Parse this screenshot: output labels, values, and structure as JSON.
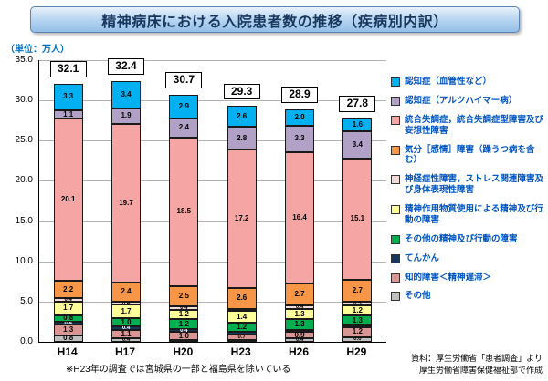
{
  "title": "精神病床における入院患者数の推移（疾病別内訳）",
  "unit_label": "（単位：万人）",
  "footnote": "※H23年の調査では宮城県の一部と福島県を除いている",
  "source_line1": "資料：厚生労働省「患者調査」より",
  "source_line2": "厚生労働省障害保健福祉部で作成",
  "chart_data": {
    "type": "bar",
    "stacked": true,
    "title": "精神病床における入院患者数の推移（疾病別内訳）",
    "unit": "万人",
    "categories": [
      "H14",
      "H17",
      "H20",
      "H23",
      "H26",
      "H29"
    ],
    "totals": [
      32.1,
      32.4,
      30.7,
      29.3,
      28.9,
      27.8
    ],
    "ylim": [
      0,
      35
    ],
    "ytick_step": 5,
    "grid": true,
    "legend_position": "right",
    "series": [
      {
        "name": "認知症（血管性など）",
        "color": "#00B0F0",
        "values": [
          3.3,
          3.4,
          2.9,
          2.6,
          2.0,
          1.6
        ]
      },
      {
        "name": "認知症（アルツハイマー病）",
        "color": "#B2A1C7",
        "values": [
          1.1,
          1.9,
          2.4,
          2.8,
          3.3,
          3.4
        ]
      },
      {
        "name": "統合失調症，統合失調症型障害及び妄想性障害",
        "color": "#F6A5A5",
        "values": [
          20.1,
          19.7,
          18.5,
          17.2,
          16.4,
          15.1
        ]
      },
      {
        "name": "気分［感情］障害（躁うつ病を含む）",
        "color": "#F79646",
        "values": [
          2.2,
          2.4,
          2.5,
          2.6,
          2.7,
          2.7
        ]
      },
      {
        "name": "神経症性障害，ストレス関連障害及び身体表現性障害",
        "color": "#F2DCDB",
        "values": [
          0.4,
          0.4,
          0.4,
          0.3,
          0.4,
          0.5
        ]
      },
      {
        "name": "精神作用物質使用による精神及び行動の障害",
        "color": "#FFFF99",
        "values": [
          1.7,
          1.7,
          1.2,
          1.4,
          1.3,
          1.2
        ]
      },
      {
        "name": "その他の精神及び行動の障害",
        "color": "#00B050",
        "values": [
          0.8,
          1.0,
          1.2,
          1.2,
          1.3,
          1.3
        ]
      },
      {
        "name": "てんかん",
        "color": "#17375E",
        "values": [
          0.4,
          0.4,
          0.4,
          0.3,
          0.2,
          0.2
        ]
      },
      {
        "name": "知的障害＜精神遅滞＞",
        "color": "#D99694",
        "values": [
          1.3,
          1.1,
          1.0,
          0.7,
          0.9,
          1.2
        ]
      },
      {
        "name": "その他",
        "color": "#C0C0C0",
        "values": [
          0.8,
          0.4,
          0.2,
          0.2,
          0.4,
          0.6
        ]
      }
    ]
  }
}
